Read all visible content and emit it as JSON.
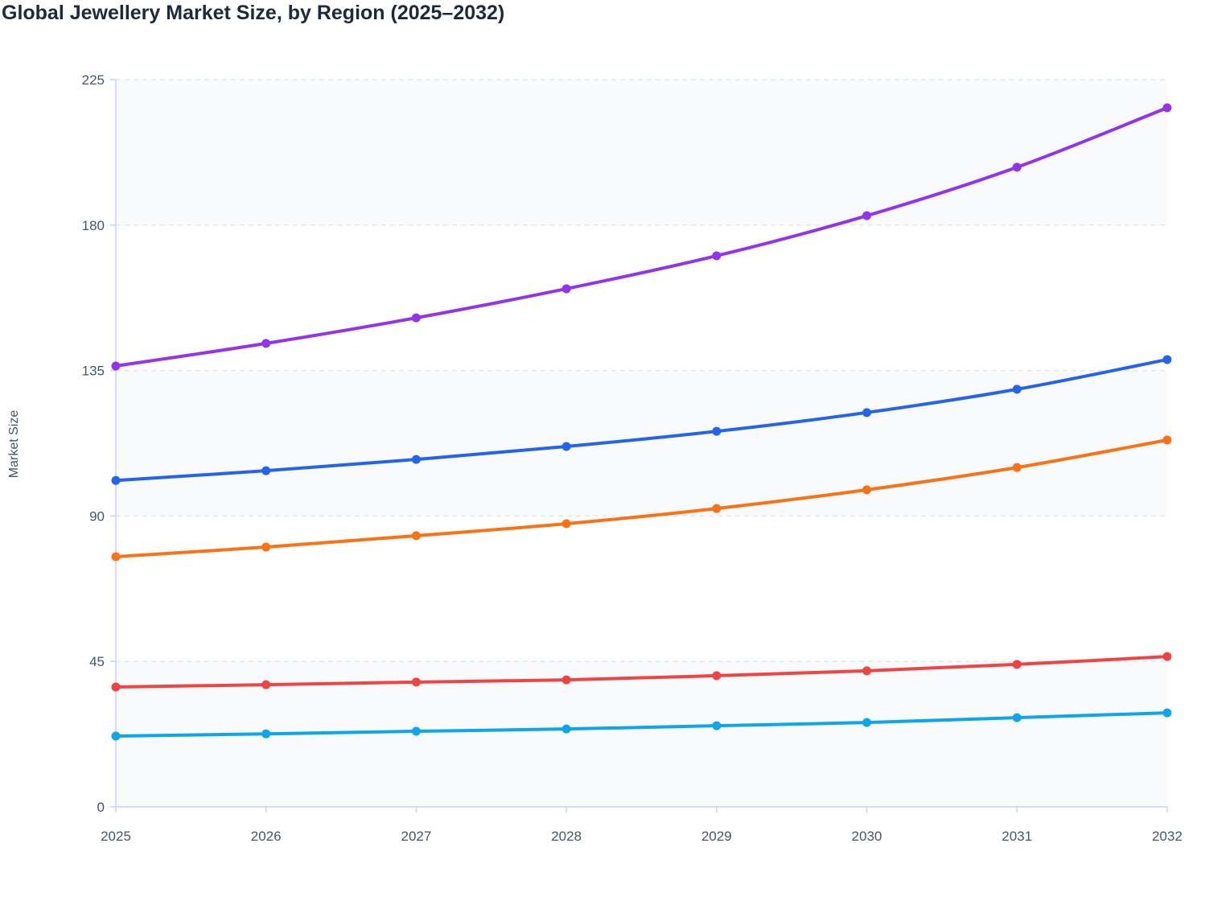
{
  "chart_data": {
    "type": "line",
    "title": "Global Jewellery Market Size, by Region (2025–2032)",
    "xlabel": "",
    "ylabel": "Market Size",
    "x": [
      "2025",
      "2026",
      "2027",
      "2028",
      "2029",
      "2030",
      "2031",
      "2032"
    ],
    "ylim": [
      0,
      225
    ],
    "yticks": [
      "0",
      "45",
      "90",
      "135",
      "180",
      "225"
    ],
    "grid": true,
    "legend": "none",
    "series": [
      {
        "color": "#9333ea",
        "values": [
          136.4,
          143.4,
          151.3,
          160.3,
          170.5,
          182.9,
          197.9,
          216.3
        ]
      },
      {
        "color": "#2563eb",
        "values": [
          101.0,
          104.0,
          107.5,
          111.5,
          116.2,
          122.0,
          129.2,
          138.4
        ]
      },
      {
        "color": "#f97316",
        "values": [
          77.4,
          80.4,
          83.9,
          87.6,
          92.3,
          98.1,
          105.0,
          113.5
        ]
      },
      {
        "color": "#ef4444",
        "values": [
          37.1,
          37.8,
          38.6,
          39.3,
          40.6,
          42.1,
          44.1,
          46.5
        ]
      },
      {
        "color": "#0ea5e9",
        "values": [
          21.9,
          22.6,
          23.4,
          24.1,
          25.1,
          26.1,
          27.6,
          29.1
        ]
      }
    ]
  }
}
